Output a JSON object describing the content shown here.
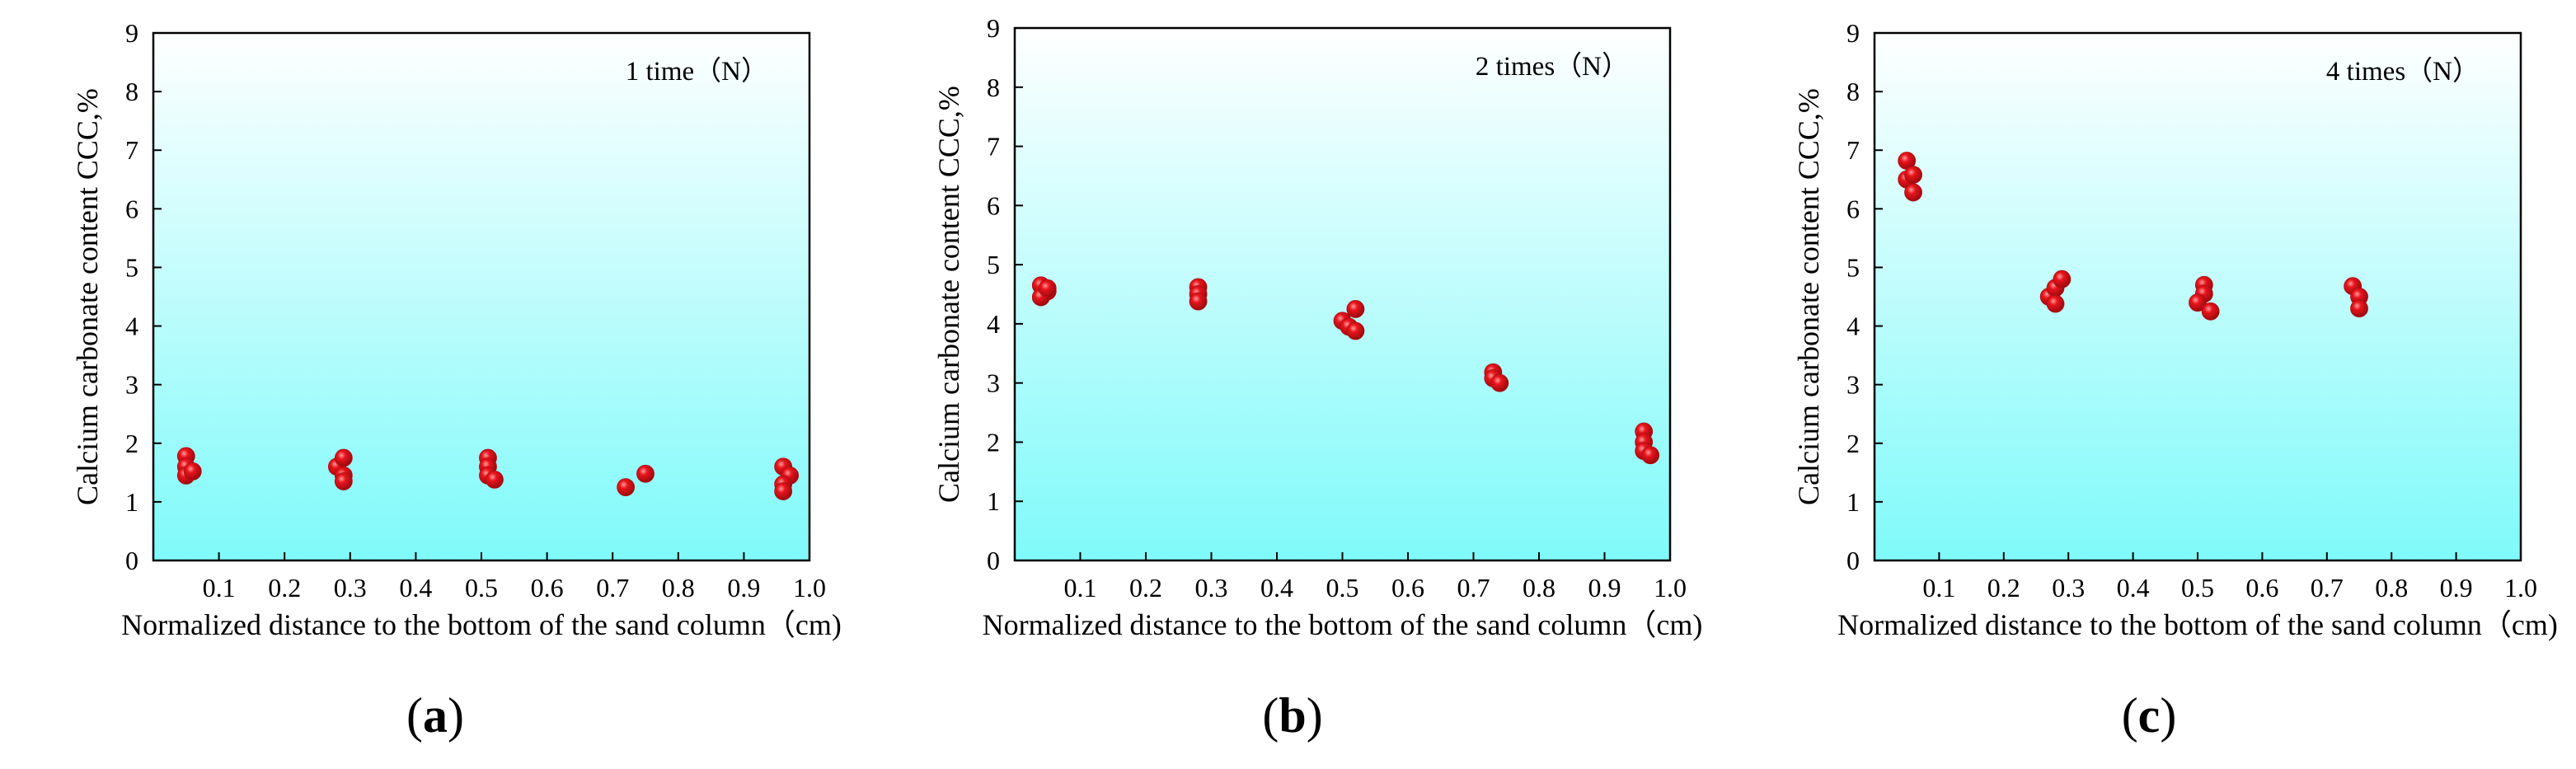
{
  "figure": {
    "colors": {
      "plot_bg_top": "#ffffff",
      "plot_bg_bottom": "#7ffafa",
      "marker_fill": "#e8141c",
      "marker_highlight": "#ff9a9a",
      "axis": "#000000"
    },
    "marker_icon": "red-sphere-icon"
  },
  "chart_data": [
    {
      "type": "scatter",
      "panel_label": "(a)",
      "panel_letter": "a",
      "title": "1 time（N）",
      "xlabel": "Normalized distance to the bottom of the sand column（cm)",
      "ylabel": "Calcium carbonate content CCC,%",
      "xlim": [
        0,
        1.0
      ],
      "ylim": [
        0,
        9
      ],
      "xticks": [
        "0.1",
        "0.2",
        "0.3",
        "0.4",
        "0.5",
        "0.6",
        "0.7",
        "0.8",
        "0.9",
        "1.0"
      ],
      "yticks": [
        "0",
        "1",
        "2",
        "3",
        "4",
        "5",
        "6",
        "7",
        "8",
        "9"
      ],
      "points": [
        {
          "x": 0.05,
          "y": 1.78
        },
        {
          "x": 0.05,
          "y": 1.6
        },
        {
          "x": 0.05,
          "y": 1.45
        },
        {
          "x": 0.06,
          "y": 1.52
        },
        {
          "x": 0.28,
          "y": 1.6
        },
        {
          "x": 0.29,
          "y": 1.75
        },
        {
          "x": 0.29,
          "y": 1.45
        },
        {
          "x": 0.29,
          "y": 1.35
        },
        {
          "x": 0.51,
          "y": 1.75
        },
        {
          "x": 0.51,
          "y": 1.6
        },
        {
          "x": 0.51,
          "y": 1.45
        },
        {
          "x": 0.52,
          "y": 1.38
        },
        {
          "x": 0.72,
          "y": 1.25
        },
        {
          "x": 0.75,
          "y": 1.48
        },
        {
          "x": 0.96,
          "y": 1.6
        },
        {
          "x": 0.97,
          "y": 1.45
        },
        {
          "x": 0.96,
          "y": 1.3
        },
        {
          "x": 0.96,
          "y": 1.18
        }
      ]
    },
    {
      "type": "scatter",
      "panel_label": "(b)",
      "panel_letter": "b",
      "title": "2 times（N）",
      "xlabel": "Normalized distance to the bottom of the sand column（cm)",
      "ylabel": "Calcium carbonate content CCC,%",
      "xlim": [
        0,
        1.0
      ],
      "ylim": [
        0,
        9
      ],
      "xticks": [
        "0.1",
        "0.2",
        "0.3",
        "0.4",
        "0.5",
        "0.6",
        "0.7",
        "0.8",
        "0.9",
        "1.0"
      ],
      "yticks": [
        "0",
        "1",
        "2",
        "3",
        "4",
        "5",
        "6",
        "7",
        "8",
        "9"
      ],
      "points": [
        {
          "x": 0.04,
          "y": 4.65
        },
        {
          "x": 0.05,
          "y": 4.55
        },
        {
          "x": 0.04,
          "y": 4.45
        },
        {
          "x": 0.05,
          "y": 4.6
        },
        {
          "x": 0.28,
          "y": 4.62
        },
        {
          "x": 0.28,
          "y": 4.5
        },
        {
          "x": 0.28,
          "y": 4.38
        },
        {
          "x": 0.5,
          "y": 4.05
        },
        {
          "x": 0.51,
          "y": 3.95
        },
        {
          "x": 0.52,
          "y": 4.25
        },
        {
          "x": 0.52,
          "y": 3.88
        },
        {
          "x": 0.73,
          "y": 3.18
        },
        {
          "x": 0.73,
          "y": 3.08
        },
        {
          "x": 0.74,
          "y": 3.0
        },
        {
          "x": 0.96,
          "y": 2.18
        },
        {
          "x": 0.96,
          "y": 2.0
        },
        {
          "x": 0.96,
          "y": 1.85
        },
        {
          "x": 0.97,
          "y": 1.78
        }
      ]
    },
    {
      "type": "scatter",
      "panel_label": "(c)",
      "panel_letter": "c",
      "title": "4 times（N）",
      "xlabel": "Normalized distance to the bottom of the sand column（cm)",
      "ylabel": "Calcium carbonate content CCC,%",
      "xlim": [
        0,
        1.0
      ],
      "ylim": [
        0,
        9
      ],
      "xticks": [
        "0.1",
        "0.2",
        "0.3",
        "0.4",
        "0.5",
        "0.6",
        "0.7",
        "0.8",
        "0.9",
        "1.0"
      ],
      "yticks": [
        "0",
        "1",
        "2",
        "3",
        "4",
        "5",
        "6",
        "7",
        "8",
        "9"
      ],
      "points": [
        {
          "x": 0.05,
          "y": 6.82
        },
        {
          "x": 0.05,
          "y": 6.5
        },
        {
          "x": 0.06,
          "y": 6.58
        },
        {
          "x": 0.06,
          "y": 6.28
        },
        {
          "x": 0.27,
          "y": 4.5
        },
        {
          "x": 0.28,
          "y": 4.65
        },
        {
          "x": 0.29,
          "y": 4.8
        },
        {
          "x": 0.28,
          "y": 4.38
        },
        {
          "x": 0.51,
          "y": 4.7
        },
        {
          "x": 0.51,
          "y": 4.55
        },
        {
          "x": 0.5,
          "y": 4.4
        },
        {
          "x": 0.52,
          "y": 4.25
        },
        {
          "x": 0.74,
          "y": 4.68
        },
        {
          "x": 0.75,
          "y": 4.5
        },
        {
          "x": 0.75,
          "y": 4.3
        }
      ]
    }
  ]
}
